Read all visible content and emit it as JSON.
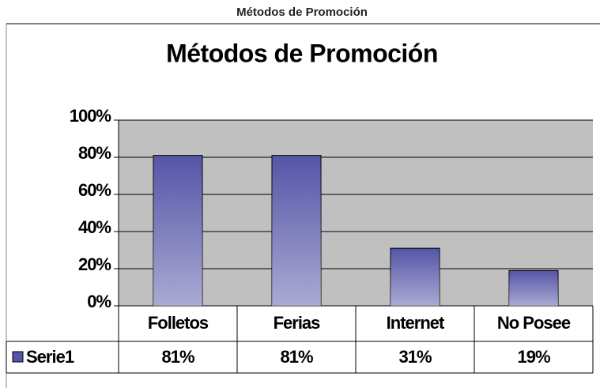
{
  "caption": "Métodos de Promoción",
  "chart_data": {
    "type": "bar",
    "title": "Métodos de Promoción",
    "categories": [
      "Folletos",
      "Ferias",
      "Internet",
      "No Posee"
    ],
    "series": [
      {
        "name": "Serie1",
        "color": "#5555a8",
        "values": [
          81,
          81,
          31,
          19
        ],
        "value_labels": [
          "81%",
          "81%",
          "31%",
          "19%"
        ]
      }
    ],
    "ylim": [
      0,
      100
    ],
    "yticks": [
      {
        "value": 0,
        "label": "0%"
      },
      {
        "value": 20,
        "label": "20%"
      },
      {
        "value": 40,
        "label": "40%"
      },
      {
        "value": 60,
        "label": "60%"
      },
      {
        "value": 80,
        "label": "80%"
      },
      {
        "value": 100,
        "label": "100%"
      }
    ],
    "grid": true
  }
}
